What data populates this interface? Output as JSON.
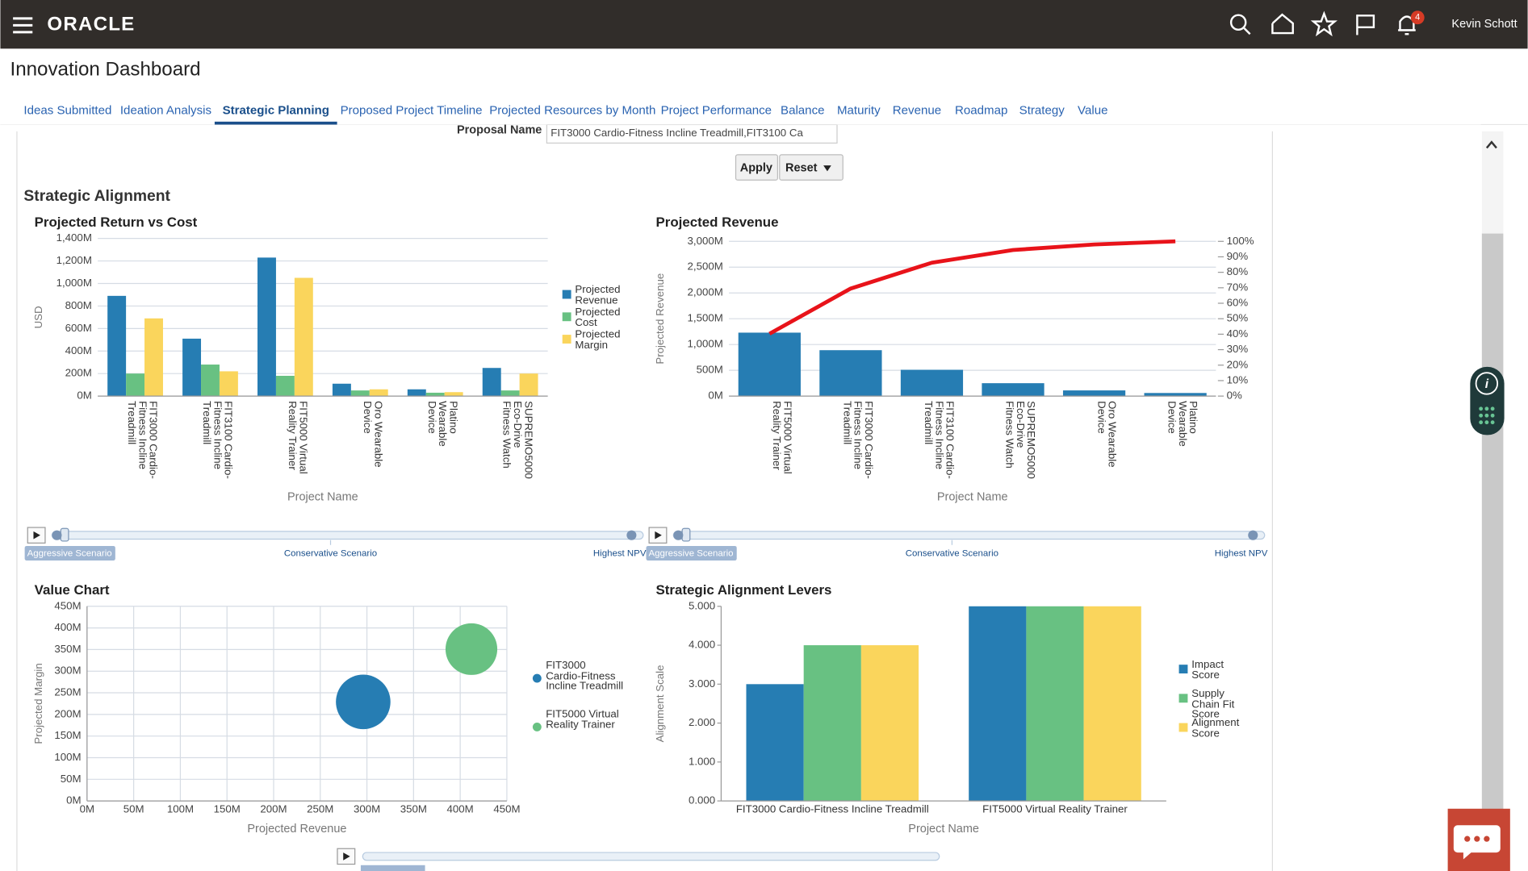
{
  "header": {
    "brand": "ORACLE",
    "notifications": 4,
    "user": "Kevin Schott"
  },
  "page_title": "Innovation Dashboard",
  "tabs": [
    "Ideas Submitted",
    "Ideation Analysis",
    "Strategic Planning",
    "Proposed Project Timeline",
    "Projected Resources by Month",
    "Project Performance",
    "Balance",
    "Maturity",
    "Revenue",
    "Roadmap",
    "Strategy",
    "Value"
  ],
  "active_tab": 2,
  "filter": {
    "label": "Proposal Name",
    "value": "FIT3000 Cardio-Fitness Incline Treadmill,FIT3100 Ca"
  },
  "buttons": [
    "Apply",
    "Reset"
  ],
  "section_title": "Strategic Alignment",
  "sliders": [
    {
      "labels": [
        "Aggressive Scenario",
        "Conservative Scenario",
        "Highest NPV"
      ]
    },
    {
      "labels": [
        "Aggressive Scenario",
        "Conservative Scenario",
        "Highest NPV"
      ]
    }
  ],
  "chart_data": [
    {
      "type": "bar",
      "title": "Projected Return vs Cost",
      "x_label": "Project Name",
      "y_label": "USD",
      "categories": [
        "FIT3000 Cardio-Fitness Incline Treadmill",
        "FIT3100 Cardio-Fitness Incline Treadmill",
        "FIT5000 Virtual Reality Trainer",
        "Oro Wearable Device",
        "Platino Wearable Device",
        "SUPREMO5000 Eco-Drive Fitness Watch"
      ],
      "series": [
        {
          "name": "Projected Revenue",
          "color": "#267db3",
          "values": [
            890,
            510,
            1230,
            110,
            60,
            250
          ]
        },
        {
          "name": "Projected Cost",
          "color": "#68c182",
          "values": [
            200,
            280,
            180,
            50,
            30,
            50
          ]
        },
        {
          "name": "Projected Margin",
          "color": "#fad55c",
          "values": [
            690,
            220,
            1050,
            60,
            35,
            200
          ]
        }
      ],
      "ylim": [
        0,
        1400
      ],
      "yticks": [
        {
          "value": 0,
          "label": "0M"
        },
        {
          "value": 200,
          "label": "200M"
        },
        {
          "value": 400,
          "label": "400M"
        },
        {
          "value": 600,
          "label": "600M"
        },
        {
          "value": 800,
          "label": "800M"
        },
        {
          "value": 1000,
          "label": "1,000M"
        },
        {
          "value": 1200,
          "label": "1,200M"
        },
        {
          "value": 1400,
          "label": "1,400M"
        }
      ],
      "grid": true,
      "legend": "right"
    },
    {
      "type": "bar",
      "title": "Projected Revenue",
      "x_label": "Project Name",
      "y_label": "Projected Revenue",
      "categories": [
        "FIT5000 Virtual Reality Trainer",
        "FIT3000 Cardio-Fitness Incline Treadmill",
        "FIT3100 Cardio-Fitness Incline Treadmill",
        "SUPREMO5000 Eco-Drive Fitness Watch",
        "Oro Wearable Device",
        "Platino Wearable Device"
      ],
      "series": [
        {
          "color": "#267db3",
          "values": [
            1230,
            890,
            510,
            250,
            110,
            60
          ]
        },
        {
          "type": "line",
          "axis": "y2",
          "color": "#e8131a",
          "values": [
            40.3,
            69.5,
            86.2,
            94.4,
            98,
            100
          ]
        }
      ],
      "ylim": [
        0,
        3000
      ],
      "yticks": [
        {
          "value": 0,
          "label": "0M"
        },
        {
          "value": 500,
          "label": "500M"
        },
        {
          "value": 1000,
          "label": "1,000M"
        },
        {
          "value": 1500,
          "label": "1,500M"
        },
        {
          "value": 2000,
          "label": "2,000M"
        },
        {
          "value": 2500,
          "label": "2,500M"
        },
        {
          "value": 3000,
          "label": "3,000M"
        }
      ],
      "y2lim": [
        0,
        100
      ],
      "y2ticks": [
        {
          "value": 0,
          "label": "0%"
        },
        {
          "value": 10,
          "label": "10%"
        },
        {
          "value": 20,
          "label": "20%"
        },
        {
          "value": 30,
          "label": "30%"
        },
        {
          "value": 40,
          "label": "40%"
        },
        {
          "value": 50,
          "label": "50%"
        },
        {
          "value": 60,
          "label": "60%"
        },
        {
          "value": 70,
          "label": "70%"
        },
        {
          "value": 80,
          "label": "80%"
        },
        {
          "value": 90,
          "label": "90%"
        },
        {
          "value": 100,
          "label": "100%"
        }
      ],
      "grid": true
    },
    {
      "type": "bubble",
      "title": "Value Chart",
      "x_label": "Projected Revenue",
      "y_label": "Projected Margin",
      "series": [
        {
          "name": "FIT3000 Cardio-Fitness Incline Treadmill",
          "color": "#267db3",
          "x": [
            296
          ],
          "values": [
            229
          ],
          "sizes": [
            200
          ]
        },
        {
          "name": "FIT5000 Virtual Reality Trainer",
          "color": "#68c182",
          "x": [
            412
          ],
          "values": [
            351
          ],
          "sizes": [
            180
          ]
        }
      ],
      "xlim": [
        0,
        450
      ],
      "xticks": [
        {
          "value": 0,
          "label": "0M"
        },
        {
          "value": 50,
          "label": "50M"
        },
        {
          "value": 100,
          "label": "100M"
        },
        {
          "value": 150,
          "label": "150M"
        },
        {
          "value": 200,
          "label": "200M"
        },
        {
          "value": 250,
          "label": "250M"
        },
        {
          "value": 300,
          "label": "300M"
        },
        {
          "value": 350,
          "label": "350M"
        },
        {
          "value": 400,
          "label": "400M"
        },
        {
          "value": 450,
          "label": "450M"
        }
      ],
      "ylim": [
        0,
        450
      ],
      "yticks": [
        {
          "value": 0,
          "label": "0M"
        },
        {
          "value": 50,
          "label": "50M"
        },
        {
          "value": 100,
          "label": "100M"
        },
        {
          "value": 150,
          "label": "150M"
        },
        {
          "value": 200,
          "label": "200M"
        },
        {
          "value": 250,
          "label": "250M"
        },
        {
          "value": 300,
          "label": "300M"
        },
        {
          "value": 350,
          "label": "350M"
        },
        {
          "value": 400,
          "label": "400M"
        },
        {
          "value": 450,
          "label": "450M"
        }
      ],
      "grid": true,
      "legend": "right"
    },
    {
      "type": "bar",
      "title": "Strategic Alignment Levers",
      "x_label": "Project Name",
      "y_label": "Alignment Scale",
      "categories": [
        "FIT3000 Cardio-Fitness Incline Treadmill",
        "FIT5000 Virtual Reality Trainer"
      ],
      "series": [
        {
          "name": "Impact Score",
          "color": "#267db3",
          "values": [
            3,
            5
          ]
        },
        {
          "name": "Supply Chain Fit Score",
          "color": "#68c182",
          "values": [
            4,
            5
          ]
        },
        {
          "name": "Alignment Score",
          "color": "#fad55c",
          "values": [
            4,
            5
          ]
        }
      ],
      "ylim": [
        0,
        5
      ],
      "yticks": [
        {
          "value": 0,
          "label": "0.000"
        },
        {
          "value": 1,
          "label": "1.000"
        },
        {
          "value": 2,
          "label": "2.000"
        },
        {
          "value": 3,
          "label": "3.000"
        },
        {
          "value": 4,
          "label": "4.000"
        },
        {
          "value": 5,
          "label": "5.000"
        }
      ],
      "grid": false,
      "legend": "right"
    }
  ]
}
